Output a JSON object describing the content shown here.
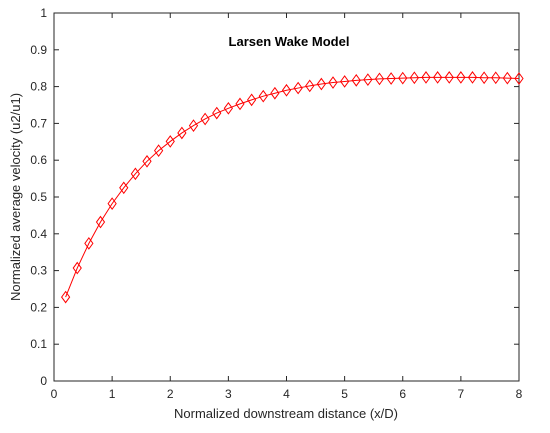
{
  "chart_data": {
    "type": "line",
    "title": "Larsen Wake Model",
    "xlabel": "Normalized downstream distance (x/D)",
    "ylabel": "Normalized average velocity (u2/u1)",
    "xlim": [
      0,
      8
    ],
    "ylim": [
      0,
      1
    ],
    "xticks": [
      "0",
      "1",
      "2",
      "3",
      "4",
      "5",
      "6",
      "7",
      "8"
    ],
    "yticks": [
      "0",
      "0.1",
      "0.2",
      "0.3",
      "0.4",
      "0.5",
      "0.6",
      "0.7",
      "0.8",
      "0.9",
      "1"
    ],
    "grid": false,
    "box": true,
    "marker": "diamond",
    "series": [
      {
        "color": "#ff0000",
        "x": [
          0.2,
          0.4,
          0.6,
          0.8,
          1.0,
          1.2,
          1.4,
          1.6,
          1.8,
          2.0,
          2.2,
          2.4,
          2.6,
          2.8,
          3.0,
          3.2,
          3.4,
          3.6,
          3.8,
          4.0,
          4.2,
          4.4,
          4.6,
          4.8,
          5.0,
          5.2,
          5.4,
          5.6,
          5.8,
          6.0,
          6.2,
          6.4,
          6.6,
          6.8,
          7.0,
          7.2,
          7.4,
          7.6,
          7.8,
          8.0
        ],
        "y": [
          0.228,
          0.307,
          0.374,
          0.432,
          0.482,
          0.525,
          0.563,
          0.597,
          0.626,
          0.651,
          0.674,
          0.694,
          0.712,
          0.728,
          0.741,
          0.753,
          0.764,
          0.774,
          0.782,
          0.79,
          0.796,
          0.802,
          0.807,
          0.811,
          0.814,
          0.817,
          0.819,
          0.821,
          0.822,
          0.823,
          0.824,
          0.825,
          0.825,
          0.825,
          0.825,
          0.825,
          0.824,
          0.824,
          0.823,
          0.822
        ]
      }
    ]
  }
}
